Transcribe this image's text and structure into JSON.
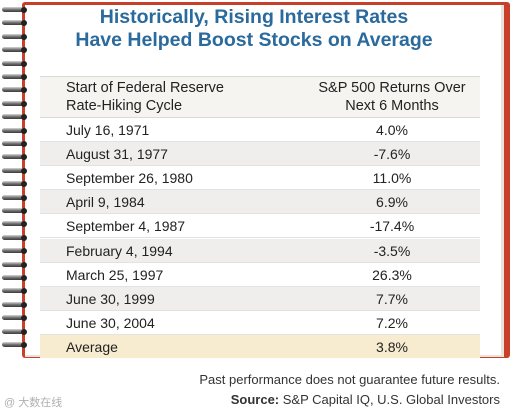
{
  "title_line1": "Historically, Rising Interest Rates",
  "title_line2": "Have Helped Boost Stocks on Average",
  "chart_data": {
    "type": "table",
    "title": "Historically, Rising Interest Rates Have Helped Boost Stocks on Average",
    "columns": [
      "Start of Federal Reserve\nRate-Hiking Cycle",
      "S&P 500 Returns Over\nNext 6 Months"
    ],
    "rows": [
      {
        "date": "July 16, 1971",
        "value": "4.0%"
      },
      {
        "date": "August 31, 1977",
        "value": "-7.6%"
      },
      {
        "date": "September 26, 1980",
        "value": "11.0%"
      },
      {
        "date": "April 9, 1984",
        "value": "6.9%"
      },
      {
        "date": "September 4, 1987",
        "value": "-17.4%"
      },
      {
        "date": "February 4, 1994",
        "value": "-3.5%"
      },
      {
        "date": "March 25, 1997",
        "value": "26.3%"
      },
      {
        "date": "June 30, 1999",
        "value": "7.7%"
      },
      {
        "date": "June 30, 2004",
        "value": "7.2%"
      }
    ],
    "average": {
      "label": "Average",
      "value": "3.8%"
    }
  },
  "footer": {
    "disclaimer": "Past performance does not guarantee future results.",
    "source_label": "Source:",
    "source_text": " S&P Capital IQ, U.S. Global Investors"
  },
  "watermark": "@ 大数在线",
  "colors": {
    "title": "#2a6a9c",
    "frame": "#c9402a",
    "average_row": "#f7eccf"
  }
}
